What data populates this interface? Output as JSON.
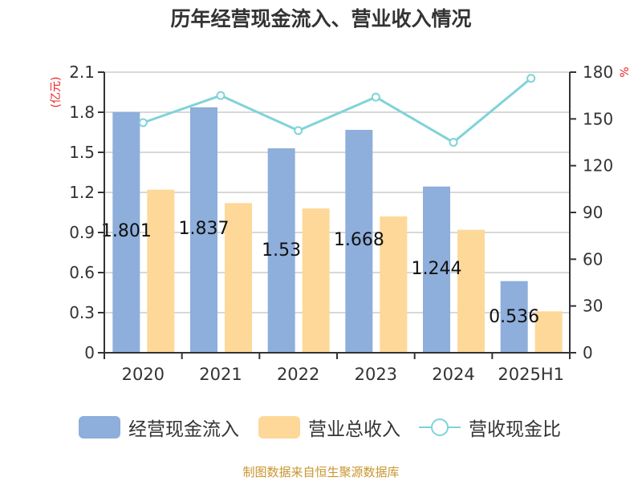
{
  "title": "历年经营现金流入、营业收入情况",
  "footer": "制图数据来自恒生聚源数据库",
  "legend": [
    {
      "label": "经营现金流入",
      "color": "#8eaedb",
      "type": "bar"
    },
    {
      "label": "营业总收入",
      "color": "#fed899",
      "type": "bar"
    },
    {
      "label": "营收现金比",
      "color": "#7fd3d8",
      "type": "line"
    }
  ],
  "axes": {
    "left_unit": "(亿元)",
    "right_unit": "%",
    "left_ticks": [
      "0",
      "0.3",
      "0.6",
      "0.9",
      "1.2",
      "1.5",
      "1.8",
      "2.1"
    ],
    "right_ticks": [
      "0",
      "30",
      "60",
      "90",
      "120",
      "150",
      "180"
    ]
  },
  "chart_data": {
    "type": "bar",
    "title": "历年经营现金流入、营业收入情况",
    "categories": [
      "2020",
      "2021",
      "2022",
      "2023",
      "2024",
      "2025H1"
    ],
    "series": [
      {
        "name": "经营现金流入",
        "type": "bar",
        "axis": "left",
        "values": [
          1.801,
          1.837,
          1.53,
          1.668,
          1.244,
          0.536
        ],
        "labels": [
          "1.801",
          "1.837",
          "1.53",
          "1.668",
          "1.244",
          "0.536"
        ]
      },
      {
        "name": "营业总收入",
        "type": "bar",
        "axis": "left",
        "values": [
          1.22,
          1.12,
          1.08,
          1.02,
          0.92,
          0.31
        ]
      },
      {
        "name": "营收现金比",
        "type": "line",
        "axis": "right",
        "values": [
          147.6,
          165,
          142.5,
          164,
          135,
          176
        ]
      }
    ],
    "xlabel": "",
    "ylabel": "(亿元)",
    "y2label": "%",
    "ylim": [
      0,
      2.1
    ],
    "y2lim": [
      0,
      180
    ],
    "grid": true,
    "legend_position": "bottom"
  }
}
